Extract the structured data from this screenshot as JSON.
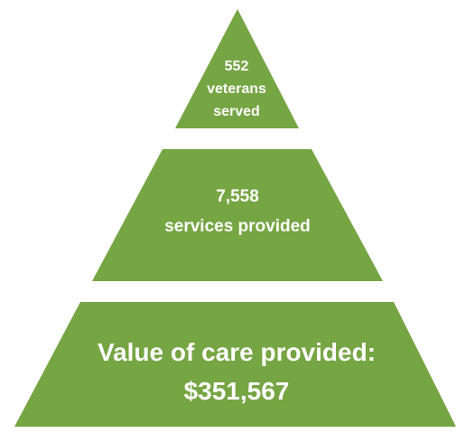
{
  "pyramid": {
    "color": "#76a543",
    "tiers": [
      {
        "lines": [
          "552",
          "veterans",
          "served"
        ]
      },
      {
        "lines": [
          "7,558",
          "services provided"
        ]
      },
      {
        "lines": [
          "Value of care provided:",
          "$351,567"
        ]
      }
    ]
  }
}
